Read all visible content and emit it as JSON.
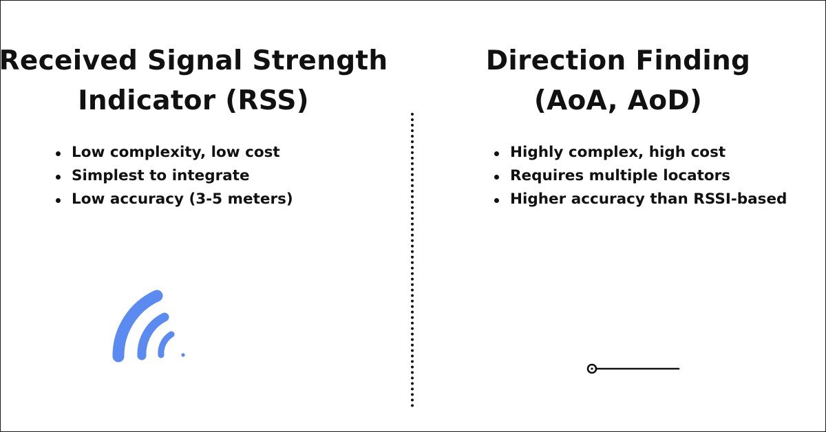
{
  "left_panel": {
    "title_line1": "Received Signal Strength",
    "title_line2": "Indicator (RSS)",
    "bullets": [
      "Low complexity, low cost",
      "Simplest to integrate",
      "Low accuracy (3-5 meters)"
    ],
    "icon": "wifi-signal-icon"
  },
  "right_panel": {
    "title_line1": "Direction Finding",
    "title_line2": "(AoA, AoD)",
    "bullets": [
      "Highly complex, high cost",
      "Requires multiple locators",
      "Higher accuracy than RSSI-based"
    ],
    "icon": "direction-line-icon"
  },
  "colors": {
    "signal_blue": "#5b8af0",
    "text": "#111111",
    "background": "#ffffff"
  }
}
